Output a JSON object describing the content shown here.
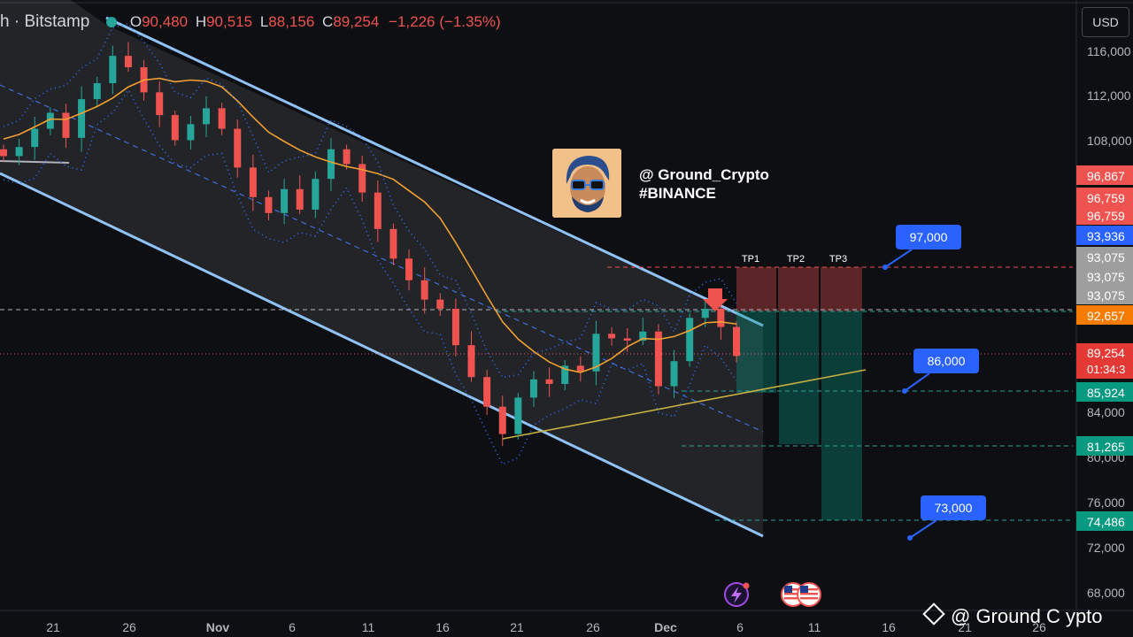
{
  "header": {
    "symbol_label": "h · Bitstamp",
    "ohlc": [
      {
        "key": "O",
        "value": "90,480"
      },
      {
        "key": "H",
        "value": "90,515"
      },
      {
        "key": "L",
        "value": "88,156"
      },
      {
        "key": "C",
        "value": "89,254"
      }
    ],
    "change": "−1,226 (−1.35%)"
  },
  "currency_button": "USD",
  "brand": {
    "handle": "@ Ground_Crypto",
    "exchange": "#BINANCE"
  },
  "watermark": "@ Ground C ypto",
  "colors": {
    "background": "#0e0f13",
    "channel": "#90c2f5",
    "ma": "#f0a030",
    "support": "#c8b040",
    "bull": "#26a69a",
    "bear": "#ef5350",
    "target_callout": "#2962ff"
  },
  "icons": [
    "lightning-event-icon",
    "us-flag-event-icon"
  ],
  "chart_data": {
    "type": "candlestick",
    "title": "",
    "xlabel": "",
    "ylabel": "",
    "ylim": [
      66000,
      118000
    ],
    "x_ticks": [
      "21",
      "26",
      "Nov",
      "6",
      "11",
      "16",
      "21",
      "26",
      "Dec",
      "6",
      "11",
      "16",
      "21",
      "26"
    ],
    "y_ticks": [
      "116,000",
      "112,000",
      "108,000",
      "84,000",
      "80,000",
      "76,000",
      "72,000",
      "68,000"
    ],
    "last_price": {
      "value": 89254,
      "label": "89,254",
      "countdown": "01:34:3"
    },
    "price_labels": [
      {
        "value": 96867,
        "label": "96,867",
        "color": "#ef5350"
      },
      {
        "value": 96759,
        "label": "96,759",
        "color": "#ef5350"
      },
      {
        "value": 96759,
        "label": "96,759",
        "color": "#ef5350"
      },
      {
        "value": 93936,
        "label": "93,936",
        "color": "#2962ff"
      },
      {
        "value": 93075,
        "label": "93,075",
        "color": "#9e9e9e"
      },
      {
        "value": 93075,
        "label": "93,075",
        "color": "#9e9e9e"
      },
      {
        "value": 93075,
        "label": "93,075",
        "color": "#9e9e9e"
      },
      {
        "value": 92657,
        "label": "92,657",
        "color": "#f57c00"
      },
      {
        "value": 85924,
        "label": "85,924",
        "color": "#089981"
      },
      {
        "value": 81265,
        "label": "81,265",
        "color": "#089981"
      },
      {
        "value": 74486,
        "label": "74,486",
        "color": "#089981"
      }
    ],
    "take_profits": [
      "TP1",
      "TP2",
      "TP3"
    ],
    "callouts": [
      {
        "label": "97,000",
        "value": 97000
      },
      {
        "label": "86,000",
        "value": 86000
      },
      {
        "label": "73,000",
        "value": 73000
      }
    ],
    "close_series": [
      106800,
      107600,
      109200,
      110600,
      108400,
      111800,
      113200,
      115600,
      114600,
      112400,
      110400,
      108200,
      109600,
      111000,
      109200,
      105800,
      103200,
      101800,
      103900,
      102100,
      104800,
      107400,
      106100,
      103600,
      100400,
      97800,
      95900,
      94200,
      93400,
      90200,
      87400,
      84800,
      82400,
      85600,
      87200,
      86800,
      88400,
      87900,
      91200,
      90800,
      90600,
      91400,
      86600,
      88800,
      92600,
      93400,
      91800,
      89254
    ]
  }
}
